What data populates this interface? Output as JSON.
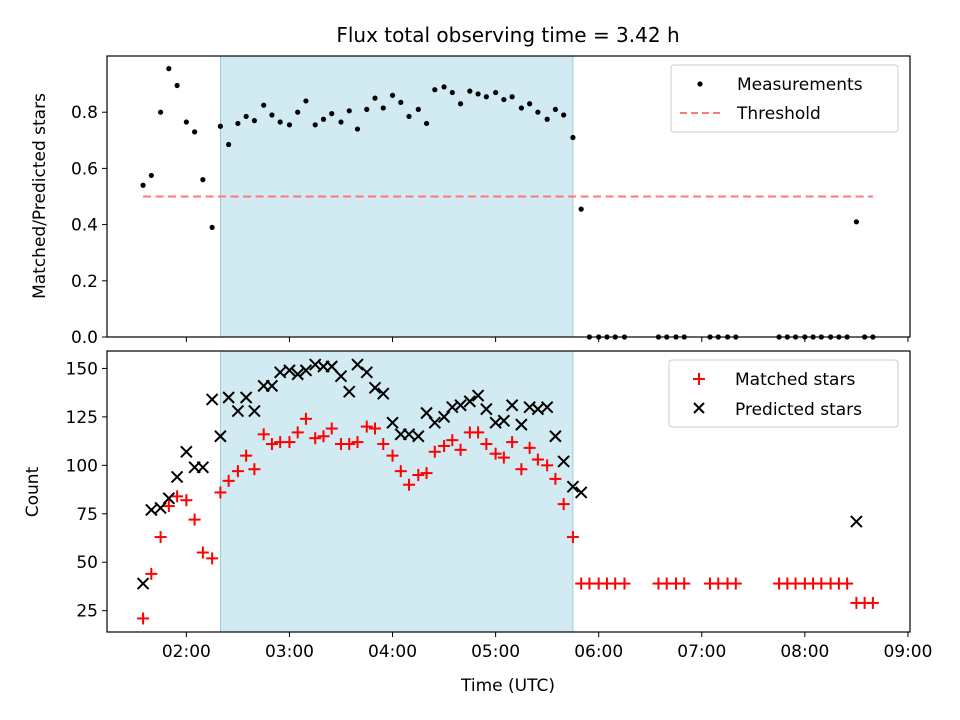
{
  "title": "Flux total observing time = 3.42 h",
  "colors": {
    "measurement": "#000000",
    "threshold": "#ff7777",
    "matched": "#ff0000",
    "predicted": "#000000",
    "highlight": "#add8e6"
  },
  "chart_data": [
    {
      "type": "scatter",
      "ylabel": "Matched/Predicted stars",
      "ylim": [
        0,
        1.0
      ],
      "yticks": [
        0.0,
        0.2,
        0.4,
        0.6,
        0.8
      ],
      "ytick_labels": [
        "0.0",
        "0.2",
        "0.4",
        "0.6",
        "0.8"
      ],
      "xlim": [
        1.23,
        9.02
      ],
      "grid": false,
      "legend_position": "top-right",
      "highlight_span": [
        2.33,
        5.75
      ],
      "series": [
        {
          "name": "Measurements",
          "marker": "dot",
          "x": [
            1.58,
            1.66,
            1.75,
            1.83,
            1.91,
            2.0,
            2.08,
            2.16,
            2.25,
            2.33,
            2.41,
            2.5,
            2.58,
            2.66,
            2.75,
            2.83,
            2.91,
            3.0,
            3.08,
            3.16,
            3.25,
            3.33,
            3.41,
            3.5,
            3.58,
            3.66,
            3.75,
            3.83,
            3.91,
            4.0,
            4.08,
            4.16,
            4.25,
            4.33,
            4.41,
            4.5,
            4.58,
            4.66,
            4.75,
            4.83,
            4.91,
            5.0,
            5.08,
            5.16,
            5.25,
            5.33,
            5.41,
            5.5,
            5.58,
            5.66,
            5.75,
            5.83,
            5.91,
            6.0,
            6.08,
            6.16,
            6.25,
            6.58,
            6.66,
            6.75,
            6.83,
            7.08,
            7.16,
            7.25,
            7.33,
            7.75,
            7.83,
            7.91,
            8.0,
            8.08,
            8.16,
            8.25,
            8.33,
            8.41,
            8.5,
            8.58,
            8.66
          ],
          "y": [
            0.54,
            0.575,
            0.8,
            0.955,
            0.895,
            0.765,
            0.73,
            0.56,
            0.39,
            0.75,
            0.685,
            0.76,
            0.785,
            0.77,
            0.825,
            0.79,
            0.765,
            0.755,
            0.8,
            0.84,
            0.755,
            0.775,
            0.795,
            0.765,
            0.805,
            0.74,
            0.81,
            0.85,
            0.815,
            0.86,
            0.835,
            0.785,
            0.81,
            0.76,
            0.88,
            0.89,
            0.87,
            0.83,
            0.875,
            0.865,
            0.855,
            0.87,
            0.845,
            0.855,
            0.815,
            0.83,
            0.8,
            0.775,
            0.81,
            0.79,
            0.71,
            0.455,
            0.0,
            0.0,
            0.0,
            0.0,
            0.0,
            0.0,
            0.0,
            0.0,
            0.0,
            0.0,
            0.0,
            0.0,
            0.0,
            0.0,
            0.0,
            0.0,
            0.0,
            0.0,
            0.0,
            0.0,
            0.0,
            0.0,
            0.41,
            0.0,
            0.0
          ]
        },
        {
          "name": "Threshold",
          "marker": "dashed-line",
          "x": [
            1.58,
            8.66
          ],
          "y": [
            0.5,
            0.5
          ]
        }
      ]
    },
    {
      "type": "scatter",
      "xlabel": "Time (UTC)",
      "ylabel": "Count",
      "ylim": [
        14,
        159
      ],
      "yticks": [
        25,
        50,
        75,
        100,
        125,
        150
      ],
      "ytick_labels": [
        "25",
        "50",
        "75",
        "100",
        "125",
        "150"
      ],
      "xlim": [
        1.23,
        9.02
      ],
      "xticks": [
        2,
        3,
        4,
        5,
        6,
        7,
        8,
        9
      ],
      "xtick_labels": [
        "02:00",
        "03:00",
        "04:00",
        "05:00",
        "06:00",
        "07:00",
        "08:00",
        "09:00"
      ],
      "grid": false,
      "legend_position": "top-right",
      "highlight_span": [
        2.33,
        5.75
      ],
      "series": [
        {
          "name": "Matched stars",
          "marker": "plus",
          "x": [
            1.58,
            1.66,
            1.75,
            1.83,
            1.91,
            2.0,
            2.08,
            2.16,
            2.25,
            2.33,
            2.41,
            2.5,
            2.58,
            2.66,
            2.75,
            2.83,
            2.91,
            3.0,
            3.08,
            3.16,
            3.25,
            3.33,
            3.41,
            3.5,
            3.58,
            3.66,
            3.75,
            3.83,
            3.91,
            4.0,
            4.08,
            4.16,
            4.25,
            4.33,
            4.41,
            4.5,
            4.58,
            4.66,
            4.75,
            4.83,
            4.91,
            5.0,
            5.08,
            5.16,
            5.25,
            5.33,
            5.41,
            5.5,
            5.58,
            5.66,
            5.75,
            5.83,
            5.91,
            6.0,
            6.08,
            6.16,
            6.25,
            6.58,
            6.66,
            6.75,
            6.83,
            7.08,
            7.16,
            7.25,
            7.33,
            7.75,
            7.83,
            7.91,
            8.0,
            8.08,
            8.16,
            8.25,
            8.33,
            8.41,
            8.5,
            8.58,
            8.66
          ],
          "y": [
            21,
            44,
            63,
            79,
            84,
            82,
            72,
            55,
            52,
            86,
            92,
            97,
            105,
            98,
            116,
            111,
            112,
            112,
            117,
            124,
            114,
            115,
            119,
            111,
            111,
            112,
            120,
            119,
            111,
            105,
            97,
            90,
            95,
            96,
            107,
            110,
            113,
            108,
            117,
            117,
            111,
            106,
            104,
            112,
            98,
            109,
            103,
            100,
            93,
            80,
            63,
            39,
            39,
            39,
            39,
            39,
            39,
            39,
            39,
            39,
            39,
            39,
            39,
            39,
            39,
            39,
            39,
            39,
            39,
            39,
            39,
            39,
            39,
            39,
            29,
            29,
            29
          ]
        },
        {
          "name": "Predicted stars",
          "marker": "x",
          "x": [
            1.58,
            1.66,
            1.75,
            1.83,
            1.91,
            2.0,
            2.08,
            2.16,
            2.25,
            2.33,
            2.41,
            2.5,
            2.58,
            2.66,
            2.75,
            2.83,
            2.91,
            3.0,
            3.08,
            3.16,
            3.25,
            3.33,
            3.41,
            3.5,
            3.58,
            3.66,
            3.75,
            3.83,
            3.91,
            4.0,
            4.08,
            4.16,
            4.25,
            4.33,
            4.41,
            4.5,
            4.58,
            4.66,
            4.75,
            4.83,
            4.91,
            5.0,
            5.08,
            5.16,
            5.25,
            5.33,
            5.41,
            5.5,
            5.58,
            5.66,
            5.75,
            5.83,
            8.5
          ],
          "y": [
            39,
            77,
            78,
            83,
            94,
            107,
            99,
            99,
            134,
            115,
            135,
            128,
            135,
            128,
            141,
            141,
            148,
            149,
            147,
            149,
            152,
            151,
            151,
            146,
            138,
            152,
            148,
            140,
            137,
            122,
            116,
            116,
            115,
            127,
            122,
            125,
            130,
            131,
            133,
            136,
            129,
            122,
            123,
            131,
            121,
            130,
            129,
            130,
            115,
            102,
            89,
            86,
            71
          ]
        }
      ]
    }
  ]
}
